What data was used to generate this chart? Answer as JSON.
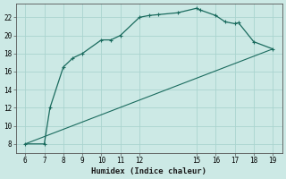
{
  "xlabel": "Humidex (Indice chaleur)",
  "background_color": "#cce9e5",
  "line_color": "#1a6b5e",
  "marker_color": "#1a6b5e",
  "grid_color": "#aad4cf",
  "curve1_x": [
    6,
    7,
    7.3,
    8,
    8.5,
    9,
    10,
    10.5,
    11,
    12,
    12.5,
    13,
    14,
    15,
    15.2,
    16,
    16.5,
    17,
    17.2,
    18,
    19
  ],
  "curve1_y": [
    8,
    8,
    12,
    16.5,
    17.5,
    18,
    19.5,
    19.5,
    20,
    22,
    22.2,
    22.3,
    22.5,
    23,
    22.8,
    22.2,
    21.5,
    21.3,
    21.4,
    19.3,
    18.5
  ],
  "curve2_x": [
    6,
    19
  ],
  "curve2_y": [
    8,
    18.5
  ],
  "xmin": 5.5,
  "xmax": 19.5,
  "ymin": 7,
  "ymax": 23.5,
  "xticks": [
    6,
    7,
    8,
    9,
    10,
    11,
    12,
    15,
    16,
    17,
    18,
    19
  ],
  "yticks": [
    8,
    10,
    12,
    14,
    16,
    18,
    20,
    22
  ],
  "tick_labelsize": 5.5,
  "xlabel_fontsize": 6.5
}
